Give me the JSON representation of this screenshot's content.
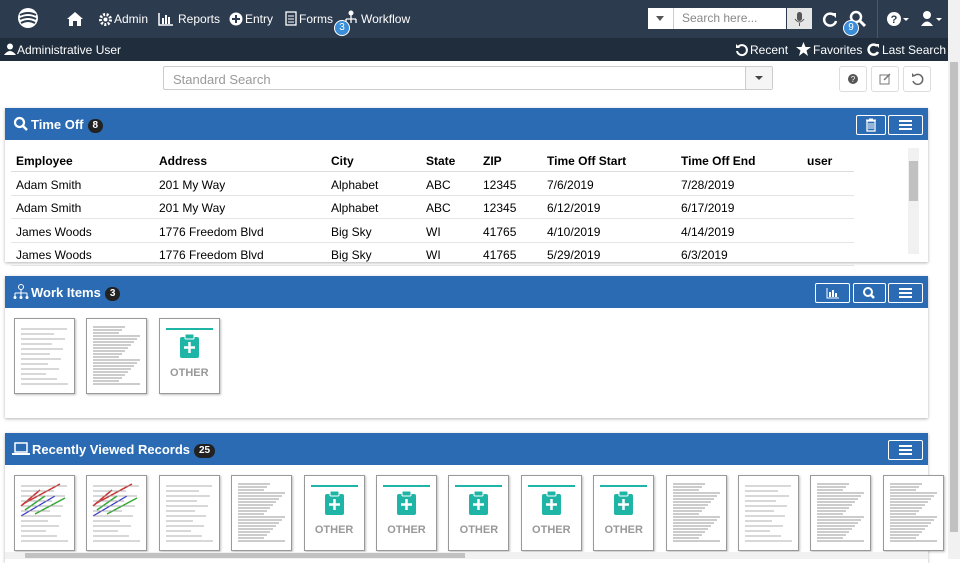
{
  "nav": {
    "items": [
      "Admin",
      "Reports",
      "Entry",
      "Forms",
      "Workflow"
    ],
    "workflow_badge": 3,
    "search_placeholder": "Search here...",
    "search_badge": 9
  },
  "user_bar": {
    "user": "Administrative User",
    "links": [
      "Recent",
      "Favorites",
      "Last Search"
    ]
  },
  "search": {
    "placeholder": "Standard Search"
  },
  "time_off": {
    "title": "Time Off",
    "count": 8,
    "columns": [
      "Employee",
      "Address",
      "City",
      "State",
      "ZIP",
      "Time Off Start",
      "Time Off End",
      "user"
    ],
    "rows": [
      [
        "Adam Smith",
        "201 My Way",
        "Alphabet",
        "ABC",
        "12345",
        "7/6/2019",
        "7/28/2019"
      ],
      [
        "Adam Smith",
        "201 My Way",
        "Alphabet",
        "ABC",
        "12345",
        "6/12/2019",
        "6/17/2019"
      ],
      [
        "James Woods",
        "1776 Freedom Blvd",
        "Big Sky",
        "WI",
        "41765",
        "4/10/2019",
        "4/14/2019"
      ],
      [
        "James Woods",
        "1776 Freedom Blvd",
        "Big Sky",
        "WI",
        "41765",
        "5/29/2019",
        "6/3/2019"
      ]
    ]
  },
  "work_items": {
    "title": "Work Items",
    "count": 3,
    "other_label": "OTHER"
  },
  "recent": {
    "title": "Recently Viewed Records",
    "count": 25,
    "other_label": "OTHER"
  }
}
